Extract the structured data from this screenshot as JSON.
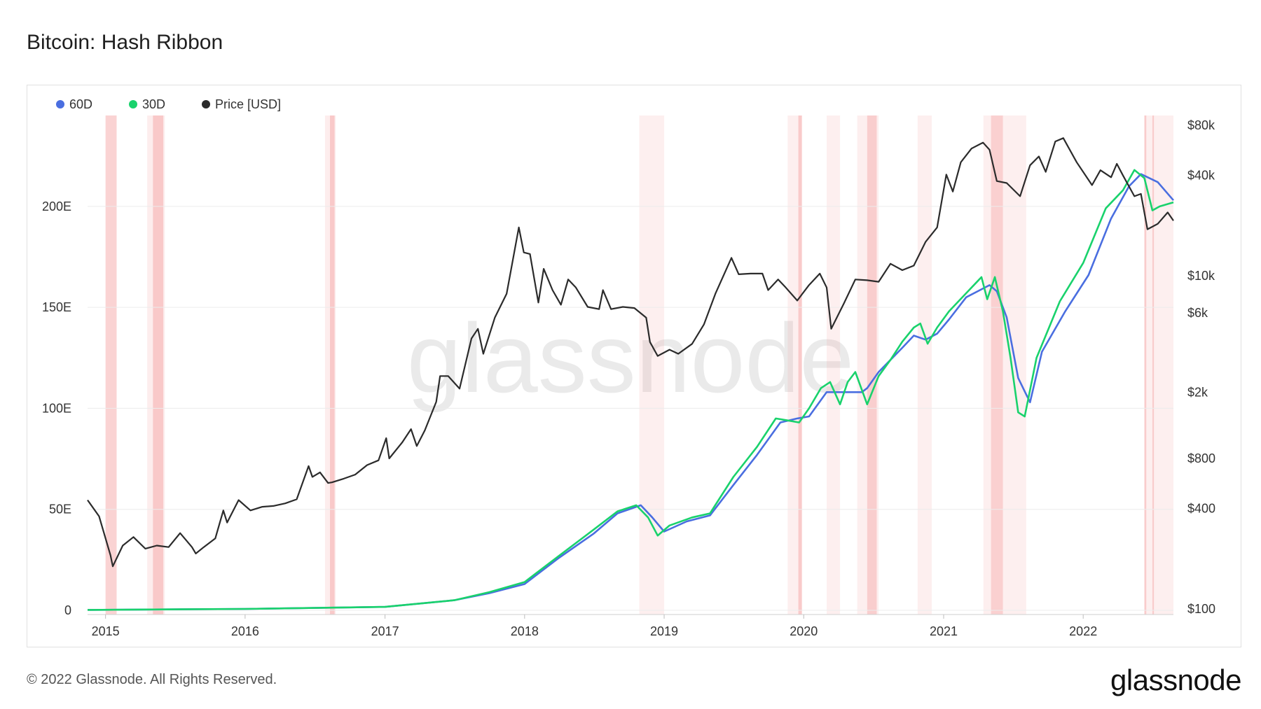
{
  "title": "Bitcoin: Hash Ribbon",
  "footer": {
    "copyright": "© 2022 Glassnode. All Rights Reserved.",
    "logo": "glassnode"
  },
  "watermark": "glassnode",
  "colors": {
    "s60": "#4a6ee0",
    "s30": "#19d26c",
    "price": "#2b2b2b",
    "band": "#f4a0a0"
  },
  "chart_data": {
    "type": "line",
    "x_ticks": [
      "2015",
      "2016",
      "2017",
      "2018",
      "2019",
      "2020",
      "2021",
      "2022"
    ],
    "y_left": {
      "ticks": [
        0,
        50,
        100,
        150,
        200
      ],
      "labels": [
        "0",
        "50E",
        "100E",
        "150E",
        "200E"
      ],
      "range": [
        0,
        245
      ]
    },
    "y_right": {
      "scale": "log",
      "ticks": [
        100,
        400,
        800,
        2000,
        6000,
        10000,
        40000,
        80000
      ],
      "labels": [
        "$100",
        "$400",
        "$800",
        "$2k",
        "$6k",
        "$10k",
        "$40k",
        "$80k"
      ],
      "range": [
        100,
        80000
      ]
    },
    "legend": [
      {
        "name": "60D",
        "color": "#4a6ee0"
      },
      {
        "name": "30D",
        "color": "#19d26c"
      },
      {
        "name": "Price [USD]",
        "color": "#2b2b2b"
      }
    ],
    "x_range": [
      "2014-11-15",
      "2022-08-25"
    ],
    "series": [
      {
        "name": "Price [USD]",
        "axis": "right",
        "points": [
          [
            "2014-11-15",
            450
          ],
          [
            "2014-12-15",
            360
          ],
          [
            "2015-01-14",
            210
          ],
          [
            "2015-01-20",
            180
          ],
          [
            "2015-02-15",
            240
          ],
          [
            "2015-03-15",
            270
          ],
          [
            "2015-04-15",
            230
          ],
          [
            "2015-05-15",
            240
          ],
          [
            "2015-06-15",
            235
          ],
          [
            "2015-07-15",
            285
          ],
          [
            "2015-08-15",
            235
          ],
          [
            "2015-08-25",
            215
          ],
          [
            "2015-09-15",
            235
          ],
          [
            "2015-10-15",
            265
          ],
          [
            "2015-11-05",
            390
          ],
          [
            "2015-11-15",
            330
          ],
          [
            "2015-12-15",
            450
          ],
          [
            "2016-01-15",
            390
          ],
          [
            "2016-02-15",
            410
          ],
          [
            "2016-03-15",
            415
          ],
          [
            "2016-04-15",
            430
          ],
          [
            "2016-05-15",
            455
          ],
          [
            "2016-06-15",
            720
          ],
          [
            "2016-06-25",
            620
          ],
          [
            "2016-07-15",
            660
          ],
          [
            "2016-08-05",
            570
          ],
          [
            "2016-08-15",
            575
          ],
          [
            "2016-09-15",
            605
          ],
          [
            "2016-10-15",
            640
          ],
          [
            "2016-11-15",
            730
          ],
          [
            "2016-12-15",
            780
          ],
          [
            "2017-01-04",
            1060
          ],
          [
            "2017-01-12",
            800
          ],
          [
            "2017-02-15",
            1000
          ],
          [
            "2017-03-10",
            1200
          ],
          [
            "2017-03-25",
            950
          ],
          [
            "2017-04-15",
            1180
          ],
          [
            "2017-05-15",
            1750
          ],
          [
            "2017-05-25",
            2500
          ],
          [
            "2017-06-15",
            2500
          ],
          [
            "2017-07-15",
            2100
          ],
          [
            "2017-08-15",
            4200
          ],
          [
            "2017-09-01",
            4800
          ],
          [
            "2017-09-15",
            3400
          ],
          [
            "2017-10-15",
            5600
          ],
          [
            "2017-11-15",
            7800
          ],
          [
            "2017-12-17",
            19500
          ],
          [
            "2017-12-30",
            13800
          ],
          [
            "2018-01-15",
            13500
          ],
          [
            "2018-02-06",
            6900
          ],
          [
            "2018-02-20",
            11000
          ],
          [
            "2018-03-15",
            8200
          ],
          [
            "2018-04-06",
            6700
          ],
          [
            "2018-04-25",
            9500
          ],
          [
            "2018-05-15",
            8500
          ],
          [
            "2018-06-15",
            6500
          ],
          [
            "2018-07-15",
            6300
          ],
          [
            "2018-07-25",
            8200
          ],
          [
            "2018-08-15",
            6300
          ],
          [
            "2018-09-15",
            6500
          ],
          [
            "2018-10-15",
            6400
          ],
          [
            "2018-11-15",
            5600
          ],
          [
            "2018-11-25",
            4000
          ],
          [
            "2018-12-15",
            3300
          ],
          [
            "2019-01-15",
            3600
          ],
          [
            "2019-02-07",
            3400
          ],
          [
            "2019-03-15",
            3900
          ],
          [
            "2019-04-15",
            5100
          ],
          [
            "2019-05-15",
            7800
          ],
          [
            "2019-06-26",
            12800
          ],
          [
            "2019-07-15",
            10200
          ],
          [
            "2019-08-15",
            10300
          ],
          [
            "2019-09-15",
            10300
          ],
          [
            "2019-09-30",
            8200
          ],
          [
            "2019-10-26",
            9500
          ],
          [
            "2019-11-15",
            8500
          ],
          [
            "2019-12-15",
            7100
          ],
          [
            "2020-01-15",
            8800
          ],
          [
            "2020-02-12",
            10300
          ],
          [
            "2020-03-01",
            8500
          ],
          [
            "2020-03-13",
            4800
          ],
          [
            "2020-04-15",
            6800
          ],
          [
            "2020-05-15",
            9500
          ],
          [
            "2020-06-15",
            9400
          ],
          [
            "2020-07-15",
            9200
          ],
          [
            "2020-08-15",
            11800
          ],
          [
            "2020-09-15",
            10800
          ],
          [
            "2020-10-15",
            11500
          ],
          [
            "2020-11-15",
            16000
          ],
          [
            "2020-12-15",
            19500
          ],
          [
            "2021-01-08",
            40500
          ],
          [
            "2021-01-25",
            32000
          ],
          [
            "2021-02-15",
            48000
          ],
          [
            "2021-03-15",
            58000
          ],
          [
            "2021-04-14",
            63000
          ],
          [
            "2021-05-01",
            57000
          ],
          [
            "2021-05-20",
            37000
          ],
          [
            "2021-06-15",
            36000
          ],
          [
            "2021-07-20",
            30000
          ],
          [
            "2021-08-15",
            46000
          ],
          [
            "2021-09-07",
            52000
          ],
          [
            "2021-09-25",
            42000
          ],
          [
            "2021-10-20",
            64000
          ],
          [
            "2021-11-10",
            67000
          ],
          [
            "2021-12-15",
            48000
          ],
          [
            "2022-01-24",
            35000
          ],
          [
            "2022-02-15",
            43000
          ],
          [
            "2022-03-15",
            39000
          ],
          [
            "2022-03-30",
            47000
          ],
          [
            "2022-04-15",
            40000
          ],
          [
            "2022-05-15",
            30000
          ],
          [
            "2022-06-01",
            31000
          ],
          [
            "2022-06-18",
            19000
          ],
          [
            "2022-07-15",
            20500
          ],
          [
            "2022-08-10",
            24000
          ],
          [
            "2022-08-25",
            21400
          ]
        ]
      },
      {
        "name": "60D",
        "axis": "left",
        "points": [
          [
            "2014-11-15",
            0.2
          ],
          [
            "2016-01-01",
            0.7
          ],
          [
            "2017-01-01",
            1.7
          ],
          [
            "2017-07-01",
            5
          ],
          [
            "2017-10-01",
            8.5
          ],
          [
            "2018-01-01",
            13
          ],
          [
            "2018-04-01",
            26
          ],
          [
            "2018-07-01",
            38
          ],
          [
            "2018-09-01",
            48
          ],
          [
            "2018-11-01",
            52
          ],
          [
            "2018-12-01",
            46
          ],
          [
            "2019-01-01",
            39
          ],
          [
            "2019-03-01",
            44
          ],
          [
            "2019-05-01",
            47
          ],
          [
            "2019-07-01",
            62
          ],
          [
            "2019-09-01",
            77
          ],
          [
            "2019-11-01",
            93
          ],
          [
            "2019-12-15",
            95
          ],
          [
            "2020-01-15",
            96
          ],
          [
            "2020-03-01",
            108
          ],
          [
            "2020-04-15",
            108
          ],
          [
            "2020-06-01",
            108
          ],
          [
            "2020-06-15",
            110
          ],
          [
            "2020-07-15",
            118
          ],
          [
            "2020-08-15",
            124
          ],
          [
            "2020-09-15",
            130
          ],
          [
            "2020-10-15",
            136
          ],
          [
            "2020-11-15",
            134
          ],
          [
            "2020-12-15",
            137
          ],
          [
            "2021-01-15",
            144
          ],
          [
            "2021-03-01",
            155
          ],
          [
            "2021-05-01",
            161
          ],
          [
            "2021-05-20",
            158
          ],
          [
            "2021-06-15",
            145
          ],
          [
            "2021-07-15",
            115
          ],
          [
            "2021-08-15",
            103
          ],
          [
            "2021-09-15",
            128
          ],
          [
            "2021-11-15",
            148
          ],
          [
            "2022-01-15",
            166
          ],
          [
            "2022-03-15",
            194
          ],
          [
            "2022-05-01",
            210
          ],
          [
            "2022-06-01",
            216
          ],
          [
            "2022-07-15",
            212
          ],
          [
            "2022-08-25",
            203
          ]
        ]
      },
      {
        "name": "30D",
        "axis": "left",
        "points": [
          [
            "2014-11-15",
            0.2
          ],
          [
            "2016-01-01",
            0.7
          ],
          [
            "2017-01-01",
            1.7
          ],
          [
            "2017-07-01",
            5
          ],
          [
            "2017-10-01",
            9
          ],
          [
            "2018-01-01",
            14
          ],
          [
            "2018-04-01",
            27
          ],
          [
            "2018-07-01",
            40
          ],
          [
            "2018-09-01",
            49
          ],
          [
            "2018-10-20",
            52
          ],
          [
            "2018-11-20",
            46
          ],
          [
            "2018-12-15",
            37
          ],
          [
            "2019-01-15",
            42
          ],
          [
            "2019-03-15",
            46
          ],
          [
            "2019-05-01",
            48
          ],
          [
            "2019-07-01",
            66
          ],
          [
            "2019-09-01",
            81
          ],
          [
            "2019-10-20",
            95
          ],
          [
            "2019-11-20",
            94
          ],
          [
            "2019-12-20",
            93
          ],
          [
            "2020-01-15",
            100
          ],
          [
            "2020-02-15",
            110
          ],
          [
            "2020-03-10",
            113
          ],
          [
            "2020-04-05",
            102
          ],
          [
            "2020-04-25",
            113
          ],
          [
            "2020-05-15",
            118
          ],
          [
            "2020-06-15",
            102
          ],
          [
            "2020-07-15",
            116
          ],
          [
            "2020-08-15",
            124
          ],
          [
            "2020-09-15",
            133
          ],
          [
            "2020-10-15",
            140
          ],
          [
            "2020-11-01",
            142
          ],
          [
            "2020-11-20",
            132
          ],
          [
            "2020-12-15",
            140
          ],
          [
            "2021-01-15",
            148
          ],
          [
            "2021-03-01",
            157
          ],
          [
            "2021-04-10",
            165
          ],
          [
            "2021-04-25",
            154
          ],
          [
            "2021-05-15",
            165
          ],
          [
            "2021-06-05",
            148
          ],
          [
            "2021-06-25",
            125
          ],
          [
            "2021-07-15",
            98
          ],
          [
            "2021-08-01",
            96
          ],
          [
            "2021-09-01",
            125
          ],
          [
            "2021-11-01",
            153
          ],
          [
            "2022-01-01",
            172
          ],
          [
            "2022-03-01",
            199
          ],
          [
            "2022-04-15",
            208
          ],
          [
            "2022-05-15",
            218
          ],
          [
            "2022-06-10",
            214
          ],
          [
            "2022-07-01",
            198
          ],
          [
            "2022-07-20",
            200
          ],
          [
            "2022-08-25",
            202
          ]
        ]
      }
    ],
    "bands": [
      {
        "start": "2015-01-01",
        "end": "2015-01-30",
        "opacity": 0.85
      },
      {
        "start": "2015-04-20",
        "end": "2015-06-05",
        "opacity": 0.35
      },
      {
        "start": "2015-05-05",
        "end": "2015-06-01",
        "opacity": 0.85
      },
      {
        "start": "2016-07-28",
        "end": "2016-08-25",
        "opacity": 0.35
      },
      {
        "start": "2016-08-10",
        "end": "2016-08-22",
        "opacity": 0.85
      },
      {
        "start": "2018-10-28",
        "end": "2019-01-01",
        "opacity": 0.3
      },
      {
        "start": "2019-11-20",
        "end": "2019-12-28",
        "opacity": 0.3
      },
      {
        "start": "2019-12-18",
        "end": "2019-12-27",
        "opacity": 0.85
      },
      {
        "start": "2020-03-01",
        "end": "2020-04-05",
        "opacity": 0.3
      },
      {
        "start": "2020-05-20",
        "end": "2020-07-15",
        "opacity": 0.3
      },
      {
        "start": "2020-06-15",
        "end": "2020-07-10",
        "opacity": 0.75
      },
      {
        "start": "2020-10-25",
        "end": "2020-12-01",
        "opacity": 0.3
      },
      {
        "start": "2021-04-15",
        "end": "2021-08-05",
        "opacity": 0.3
      },
      {
        "start": "2021-05-05",
        "end": "2021-06-05",
        "opacity": 0.7
      },
      {
        "start": "2022-06-10",
        "end": "2022-08-25",
        "opacity": 0.3
      },
      {
        "start": "2022-06-10",
        "end": "2022-06-15",
        "opacity": 0.8
      },
      {
        "start": "2022-07-01",
        "end": "2022-07-05",
        "opacity": 0.8
      }
    ]
  }
}
